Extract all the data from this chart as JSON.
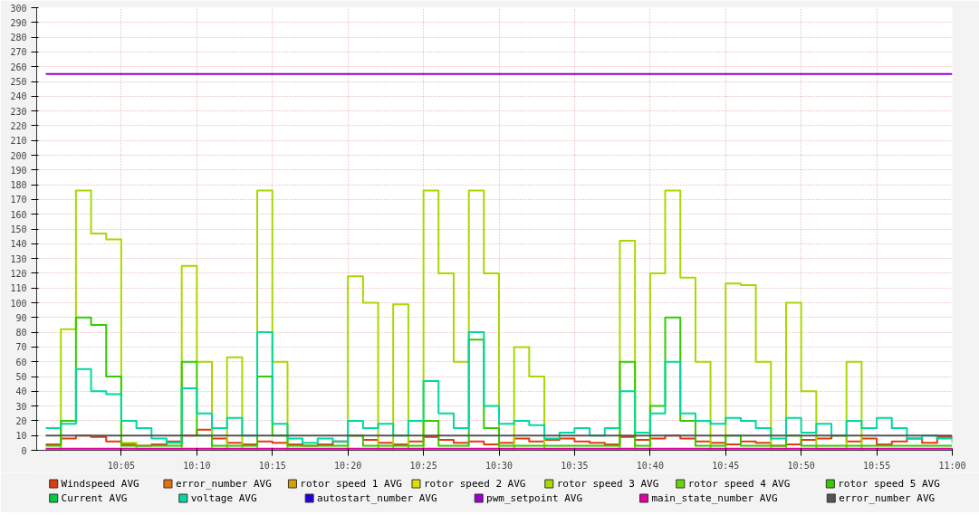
{
  "chart_data": {
    "type": "step",
    "xlim": [
      9.99,
      11.0
    ],
    "ylim": [
      0,
      300
    ],
    "xticks": [
      {
        "value": 10.0833,
        "label": "10:05"
      },
      {
        "value": 10.1667,
        "label": "10:10"
      },
      {
        "value": 10.25,
        "label": "10:15"
      },
      {
        "value": 10.3333,
        "label": "10:20"
      },
      {
        "value": 10.4167,
        "label": "10:25"
      },
      {
        "value": 10.5,
        "label": "10:30"
      },
      {
        "value": 10.5833,
        "label": "10:35"
      },
      {
        "value": 10.6667,
        "label": "10:40"
      },
      {
        "value": 10.75,
        "label": "10:45"
      },
      {
        "value": 10.8333,
        "label": "10:50"
      },
      {
        "value": 10.9167,
        "label": "10:55"
      },
      {
        "value": 11.0,
        "label": "11:00"
      }
    ],
    "yticks": [
      0,
      10,
      20,
      30,
      40,
      50,
      60,
      70,
      80,
      90,
      100,
      110,
      120,
      130,
      140,
      150,
      160,
      170,
      180,
      190,
      200,
      210,
      220,
      230,
      240,
      250,
      260,
      270,
      280,
      290,
      300
    ],
    "grid": true,
    "legend": "bottom",
    "x": [
      10.0,
      10.0167,
      10.0333,
      10.05,
      10.0667,
      10.0833,
      10.1,
      10.1167,
      10.1333,
      10.15,
      10.1667,
      10.1833,
      10.2,
      10.2167,
      10.2333,
      10.25,
      10.2667,
      10.2833,
      10.3,
      10.3167,
      10.3333,
      10.35,
      10.3667,
      10.3833,
      10.4,
      10.4167,
      10.4333,
      10.45,
      10.4667,
      10.4833,
      10.5,
      10.5167,
      10.5333,
      10.55,
      10.5667,
      10.5833,
      10.6,
      10.6167,
      10.6333,
      10.65,
      10.6667,
      10.6833,
      10.7,
      10.7167,
      10.7333,
      10.75,
      10.7667,
      10.7833,
      10.8,
      10.8167,
      10.8333,
      10.85,
      10.8667,
      10.8833,
      10.9,
      10.9167,
      10.9333,
      10.95,
      10.9667,
      10.9833,
      11.0
    ],
    "series": [
      {
        "name": "Windspeed AVG",
        "color": "#e23a0e",
        "values": [
          4,
          8,
          10,
          9,
          6,
          4,
          3,
          4,
          6,
          10,
          14,
          8,
          5,
          4,
          6,
          5,
          4,
          3,
          4,
          6,
          10,
          7,
          5,
          4,
          6,
          9,
          7,
          5,
          6,
          4,
          5,
          8,
          6,
          7,
          8,
          6,
          5,
          4,
          9,
          7,
          8,
          10,
          8,
          6,
          5,
          4,
          6,
          5,
          3,
          4,
          7,
          8,
          10,
          6,
          8,
          4,
          6,
          8,
          5,
          9,
          8
        ]
      },
      {
        "name": "error_number AVG",
        "color": "#e07010",
        "values": [
          null,
          null,
          null,
          null,
          null,
          null,
          null,
          null,
          null,
          null,
          null,
          null,
          null,
          null,
          null,
          null,
          null,
          null,
          null,
          null,
          null,
          null,
          null,
          null,
          null,
          null,
          null,
          null,
          null,
          null,
          null,
          null,
          null,
          null,
          null,
          null,
          null,
          null,
          null,
          null,
          null,
          null,
          null,
          null,
          null,
          null,
          null,
          null,
          null,
          null,
          null,
          null,
          null,
          null,
          null,
          null,
          null,
          null,
          null,
          null,
          null
        ]
      },
      {
        "name": "rotor speed 1 AVG",
        "color": "#d4a000",
        "values": [
          null,
          null,
          null,
          null,
          null,
          null,
          null,
          null,
          null,
          null,
          null,
          null,
          null,
          null,
          null,
          null,
          null,
          null,
          null,
          null,
          null,
          null,
          null,
          null,
          null,
          null,
          null,
          null,
          null,
          null,
          null,
          null,
          null,
          null,
          null,
          null,
          null,
          null,
          null,
          null,
          null,
          null,
          null,
          null,
          null,
          null,
          null,
          null,
          null,
          null,
          null,
          null,
          null,
          null,
          null,
          null,
          null,
          null,
          null,
          null,
          null
        ]
      },
      {
        "name": "rotor speed 2 AVG",
        "color": "#e0e000",
        "values": [
          null,
          null,
          null,
          null,
          null,
          null,
          null,
          null,
          null,
          null,
          null,
          null,
          null,
          null,
          null,
          null,
          null,
          null,
          null,
          null,
          null,
          null,
          null,
          null,
          null,
          null,
          null,
          null,
          null,
          null,
          null,
          null,
          null,
          null,
          null,
          null,
          null,
          null,
          null,
          null,
          null,
          null,
          null,
          null,
          null,
          null,
          null,
          null,
          null,
          null,
          null,
          null,
          null,
          null,
          null,
          null,
          null,
          null,
          null,
          null,
          null
        ]
      },
      {
        "name": "rotor speed 3 AVG",
        "color": "#a8d800",
        "values": [
          0,
          82,
          176,
          147,
          143,
          5,
          0,
          0,
          0,
          125,
          60,
          0,
          63,
          0,
          176,
          60,
          0,
          0,
          0,
          0,
          118,
          100,
          0,
          99,
          0,
          176,
          120,
          60,
          176,
          120,
          0,
          70,
          50,
          0,
          0,
          0,
          0,
          0,
          142,
          0,
          120,
          176,
          117,
          60,
          0,
          113,
          112,
          60,
          0,
          100,
          40,
          0,
          0,
          60,
          0,
          null,
          null,
          null,
          null,
          null,
          null
        ]
      },
      {
        "name": "rotor speed 4 AVG",
        "color": "#66d800",
        "values": [
          null,
          null,
          null,
          null,
          null,
          null,
          null,
          null,
          null,
          null,
          null,
          null,
          null,
          null,
          null,
          null,
          null,
          null,
          null,
          null,
          null,
          null,
          null,
          null,
          null,
          null,
          null,
          null,
          null,
          null,
          null,
          null,
          null,
          null,
          null,
          null,
          null,
          null,
          null,
          null,
          null,
          null,
          null,
          null,
          null,
          null,
          null,
          null,
          null,
          null,
          null,
          null,
          null,
          null,
          null,
          null,
          null,
          null,
          null,
          null,
          null
        ]
      },
      {
        "name": "rotor speed 5 AVG",
        "color": "#33cc00",
        "values": [
          3,
          20,
          90,
          85,
          50,
          3,
          3,
          3,
          3,
          60,
          10,
          3,
          3,
          3,
          50,
          10,
          3,
          3,
          3,
          3,
          10,
          3,
          3,
          3,
          3,
          20,
          3,
          3,
          75,
          15,
          3,
          3,
          3,
          3,
          3,
          3,
          3,
          3,
          60,
          3,
          30,
          90,
          20,
          3,
          3,
          10,
          3,
          3,
          3,
          10,
          3,
          3,
          3,
          3,
          3,
          3,
          3,
          3,
          3,
          3,
          3
        ]
      },
      {
        "name": "Current AVG",
        "color": "#00cc44",
        "values": [
          null,
          null,
          null,
          null,
          null,
          null,
          null,
          null,
          null,
          null,
          null,
          null,
          null,
          null,
          null,
          null,
          null,
          null,
          null,
          null,
          null,
          null,
          null,
          null,
          null,
          null,
          null,
          null,
          null,
          null,
          null,
          null,
          null,
          null,
          null,
          null,
          null,
          null,
          null,
          null,
          null,
          null,
          null,
          null,
          null,
          null,
          null,
          null,
          null,
          null,
          null,
          null,
          null,
          null,
          null,
          null,
          null,
          null,
          null,
          null,
          null
        ]
      },
      {
        "name": "voltage AVG",
        "color": "#00d8a0",
        "values": [
          15,
          18,
          55,
          40,
          38,
          20,
          15,
          8,
          5,
          42,
          25,
          15,
          22,
          10,
          80,
          18,
          8,
          5,
          8,
          6,
          20,
          15,
          18,
          10,
          20,
          47,
          25,
          15,
          80,
          30,
          18,
          20,
          17,
          8,
          12,
          15,
          10,
          15,
          40,
          12,
          25,
          60,
          25,
          20,
          18,
          22,
          20,
          15,
          8,
          22,
          12,
          18,
          10,
          20,
          15,
          22,
          15,
          8,
          10,
          8,
          5
        ]
      },
      {
        "name": "autostart_number AVG",
        "color": "#2200dd",
        "values": [
          null,
          null,
          null,
          null,
          null,
          null,
          null,
          null,
          null,
          null,
          null,
          null,
          null,
          null,
          null,
          null,
          null,
          null,
          null,
          null,
          null,
          null,
          null,
          null,
          null,
          null,
          null,
          null,
          null,
          null,
          null,
          null,
          null,
          null,
          null,
          null,
          null,
          null,
          null,
          null,
          null,
          null,
          null,
          null,
          null,
          null,
          null,
          null,
          null,
          null,
          null,
          null,
          null,
          null,
          null,
          null,
          null,
          null,
          null,
          null,
          null
        ]
      },
      {
        "name": "pwm_setpoint AVG",
        "color": "#9900cc",
        "values": [
          255,
          255,
          255,
          255,
          255,
          255,
          255,
          255,
          255,
          255,
          255,
          255,
          255,
          255,
          255,
          255,
          255,
          255,
          255,
          255,
          255,
          255,
          255,
          255,
          255,
          255,
          255,
          255,
          255,
          255,
          255,
          255,
          255,
          255,
          255,
          255,
          255,
          255,
          255,
          255,
          255,
          255,
          255,
          255,
          255,
          255,
          255,
          255,
          255,
          255,
          255,
          255,
          255,
          255,
          255,
          255,
          255,
          255,
          255,
          255,
          255
        ]
      },
      {
        "name": "main_state_number AVG",
        "color": "#e000a0",
        "values": [
          1,
          1,
          1,
          1,
          1,
          1,
          1,
          1,
          1,
          1,
          1,
          1,
          1,
          1,
          1,
          1,
          1,
          1,
          1,
          1,
          1,
          1,
          1,
          1,
          1,
          1,
          1,
          1,
          1,
          1,
          1,
          1,
          1,
          1,
          1,
          1,
          1,
          1,
          1,
          1,
          1,
          1,
          1,
          1,
          1,
          1,
          1,
          1,
          1,
          1,
          1,
          1,
          1,
          1,
          1,
          1,
          1,
          1,
          1,
          1,
          1
        ]
      },
      {
        "name": "error_number AVG",
        "color": "#555555",
        "values": [
          10,
          10,
          10,
          10,
          10,
          10,
          10,
          10,
          10,
          10,
          10,
          10,
          10,
          10,
          10,
          10,
          10,
          10,
          10,
          10,
          10,
          10,
          10,
          10,
          10,
          10,
          10,
          10,
          10,
          10,
          10,
          10,
          10,
          10,
          10,
          10,
          10,
          10,
          10,
          10,
          10,
          10,
          10,
          10,
          10,
          10,
          10,
          10,
          10,
          10,
          10,
          10,
          10,
          10,
          10,
          10,
          10,
          10,
          10,
          10,
          10
        ]
      }
    ]
  }
}
